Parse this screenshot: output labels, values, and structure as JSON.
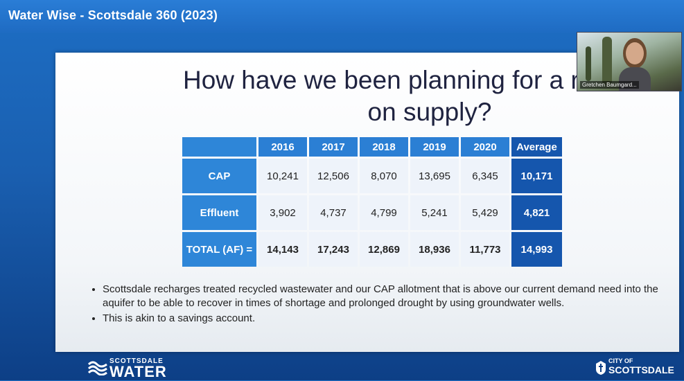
{
  "window": {
    "title": "Water Wise - Scottsdale 360 (2023)"
  },
  "slide": {
    "title_line1": "How have we been planning for a reduc",
    "title_line2": "on supply?",
    "table": {
      "headers": [
        "",
        "2016",
        "2017",
        "2018",
        "2019",
        "2020",
        "Average"
      ],
      "rows": [
        {
          "label": "CAP",
          "values": [
            "10,241",
            "12,506",
            "8,070",
            "13,695",
            "6,345"
          ],
          "average": "10,171"
        },
        {
          "label": "Effluent",
          "values": [
            "3,902",
            "4,737",
            "4,799",
            "5,241",
            "5,429"
          ],
          "average": "4,821"
        },
        {
          "label": "TOTAL (AF) =",
          "values": [
            "14,143",
            "17,243",
            "12,869",
            "18,936",
            "11,773"
          ],
          "average": "14,993"
        }
      ]
    },
    "bullets": [
      "Scottsdale recharges treated recycled wastewater and our CAP allotment that is above our current demand need into the aquifer to be able to recover in times of shortage and prolonged drought by using groundwater wells.",
      "This is akin to a savings account."
    ]
  },
  "video": {
    "participant_name": "Gretchen Baumgard..."
  },
  "footer": {
    "logo_left_small": "SCOTTSDALE",
    "logo_left_big": "WATER",
    "logo_right_small": "CITY OF",
    "logo_right_big": "SCOTTSDALE"
  },
  "colors": {
    "header_blue": "#2b7fd4",
    "average_blue": "#1556ad",
    "background_blue": "#1a5fb0"
  }
}
